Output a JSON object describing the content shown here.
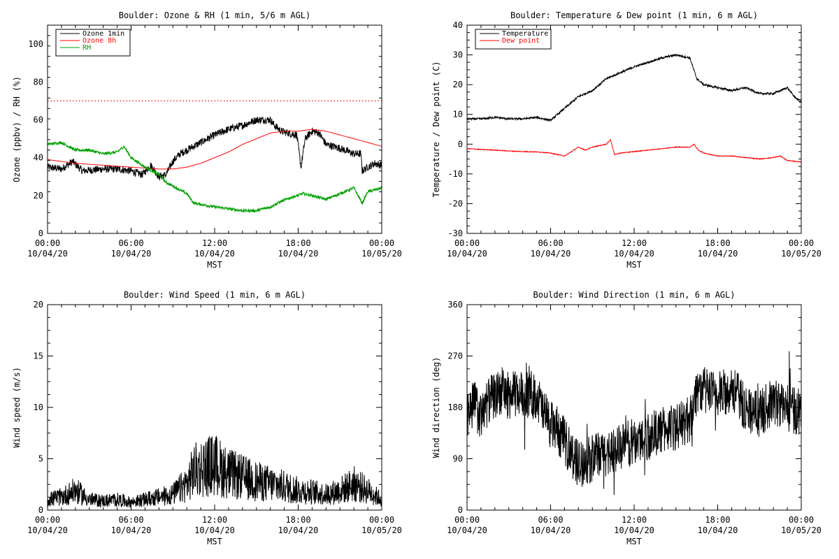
{
  "chart_data": [
    {
      "type": "line",
      "title": "Boulder: Ozone & RH (1 min, 5/6 m AGL)",
      "xlabel": "MST",
      "ylabel": "Ozone (ppbv) / RH (%)",
      "ylim": [
        0,
        110
      ],
      "yticks": [
        0,
        20,
        40,
        60,
        80,
        100
      ],
      "xticks": [
        {
          "hour": 0,
          "time": "00:00",
          "date": "10/04/20"
        },
        {
          "hour": 6,
          "time": "06:00",
          "date": "10/04/20"
        },
        {
          "hour": 12,
          "time": "12:00",
          "date": "10/04/20"
        },
        {
          "hour": 18,
          "time": "18:00",
          "date": "10/04/20"
        },
        {
          "hour": 24,
          "time": "00:00",
          "date": "10/05/20"
        }
      ],
      "legend": "top-left",
      "reference_line": {
        "y": 70,
        "color": "#ff0000",
        "style": "dotted"
      },
      "series": [
        {
          "name": "Ozone 1min",
          "color": "#000000",
          "points": [
            [
              0,
              35
            ],
            [
              1,
              34
            ],
            [
              1.8,
              38
            ],
            [
              2.5,
              33
            ],
            [
              4,
              34
            ],
            [
              5,
              34
            ],
            [
              6,
              33
            ],
            [
              6.8,
              31
            ],
            [
              7.4,
              36
            ],
            [
              8,
              30
            ],
            [
              8.5,
              31
            ],
            [
              9,
              38
            ],
            [
              9.5,
              42
            ],
            [
              10,
              44
            ],
            [
              11,
              48
            ],
            [
              12,
              52
            ],
            [
              13,
              55
            ],
            [
              14,
              57
            ],
            [
              15,
              60
            ],
            [
              16,
              60
            ],
            [
              16.3,
              57
            ],
            [
              16.8,
              54
            ],
            [
              17.3,
              53
            ],
            [
              17.9,
              52
            ],
            [
              18.2,
              35
            ],
            [
              18.5,
              50
            ],
            [
              19,
              54
            ],
            [
              19.5,
              53
            ],
            [
              20,
              47
            ],
            [
              21,
              45
            ],
            [
              22,
              42
            ],
            [
              22.5,
              42
            ],
            [
              22.6,
              33
            ],
            [
              23,
              35
            ],
            [
              23.5,
              37
            ],
            [
              24,
              36
            ]
          ]
        },
        {
          "name": "Ozone 8h",
          "color": "#ff0000",
          "points": [
            [
              0,
              39
            ],
            [
              2,
              37
            ],
            [
              4,
              36
            ],
            [
              6,
              35
            ],
            [
              8,
              34
            ],
            [
              9,
              34
            ],
            [
              10,
              35
            ],
            [
              11,
              37
            ],
            [
              12,
              40
            ],
            [
              13,
              43
            ],
            [
              14,
              47
            ],
            [
              15,
              50
            ],
            [
              16,
              53
            ],
            [
              17,
              54
            ],
            [
              18,
              54
            ],
            [
              19,
              55
            ],
            [
              20,
              54
            ],
            [
              21,
              52
            ],
            [
              22,
              50
            ],
            [
              23,
              48
            ],
            [
              24,
              46
            ]
          ]
        },
        {
          "name": "RH",
          "color": "#00a000",
          "points": [
            [
              0,
              47
            ],
            [
              1,
              48
            ],
            [
              2,
              44
            ],
            [
              3,
              44
            ],
            [
              4,
              42
            ],
            [
              5,
              43
            ],
            [
              5.5,
              46
            ],
            [
              6,
              40
            ],
            [
              7,
              35
            ],
            [
              8,
              31
            ],
            [
              8.5,
              27
            ],
            [
              9,
              25
            ],
            [
              10,
              21
            ],
            [
              10.5,
              16
            ],
            [
              12,
              14
            ],
            [
              13,
              13
            ],
            [
              14,
              12
            ],
            [
              15,
              12
            ],
            [
              16,
              14
            ],
            [
              16.8,
              17
            ],
            [
              17.5,
              19
            ],
            [
              18,
              20
            ],
            [
              18.3,
              21
            ],
            [
              19,
              20
            ],
            [
              20,
              18
            ],
            [
              21,
              21
            ],
            [
              22,
              24
            ],
            [
              22.6,
              16
            ],
            [
              23,
              22
            ],
            [
              24,
              24
            ]
          ]
        }
      ]
    },
    {
      "type": "line",
      "title": "Boulder: Temperature & Dew point (1 min, 6 m AGL)",
      "xlabel": "MST",
      "ylabel": "Temperature / Dew point (C)",
      "ylim": [
        -30,
        40
      ],
      "yticks": [
        -30,
        -20,
        -10,
        0,
        10,
        20,
        30,
        40
      ],
      "xticks": [
        {
          "hour": 0,
          "time": "00:00",
          "date": "10/04/20"
        },
        {
          "hour": 6,
          "time": "06:00",
          "date": "10/04/20"
        },
        {
          "hour": 12,
          "time": "12:00",
          "date": "10/04/20"
        },
        {
          "hour": 18,
          "time": "18:00",
          "date": "10/04/20"
        },
        {
          "hour": 24,
          "time": "00:00",
          "date": "10/05/20"
        }
      ],
      "legend": "top-left",
      "series": [
        {
          "name": "Temperature",
          "color": "#000000",
          "points": [
            [
              0,
              8.5
            ],
            [
              1,
              8.5
            ],
            [
              2,
              9
            ],
            [
              3,
              8.5
            ],
            [
              4,
              8.5
            ],
            [
              5,
              9
            ],
            [
              6,
              8
            ],
            [
              7,
              12
            ],
            [
              8,
              16
            ],
            [
              9,
              18
            ],
            [
              10,
              22
            ],
            [
              11,
              24
            ],
            [
              12,
              26
            ],
            [
              13,
              27.5
            ],
            [
              14,
              29
            ],
            [
              15,
              30
            ],
            [
              16,
              29
            ],
            [
              16.5,
              22
            ],
            [
              17,
              20
            ],
            [
              18,
              19
            ],
            [
              19,
              18
            ],
            [
              20,
              19
            ],
            [
              21,
              17
            ],
            [
              22,
              17
            ],
            [
              23,
              19
            ],
            [
              23.5,
              16
            ],
            [
              24,
              14
            ]
          ]
        },
        {
          "name": "Dew point",
          "color": "#ff0000",
          "points": [
            [
              0,
              -1.5
            ],
            [
              1,
              -1.8
            ],
            [
              2,
              -2
            ],
            [
              3,
              -2.3
            ],
            [
              4,
              -2.5
            ],
            [
              5,
              -2.6
            ],
            [
              6,
              -3
            ],
            [
              7,
              -4
            ],
            [
              8,
              -1
            ],
            [
              8.5,
              -2
            ],
            [
              9,
              -1
            ],
            [
              10,
              0
            ],
            [
              10.3,
              1.5
            ],
            [
              10.6,
              -3.5
            ],
            [
              11,
              -3
            ],
            [
              12,
              -2.5
            ],
            [
              13,
              -2
            ],
            [
              14,
              -1.5
            ],
            [
              15,
              -1
            ],
            [
              16,
              -1
            ],
            [
              16.3,
              0
            ],
            [
              16.6,
              -2
            ],
            [
              17,
              -3
            ],
            [
              18,
              -4
            ],
            [
              19,
              -4
            ],
            [
              20,
              -4.5
            ],
            [
              21,
              -5
            ],
            [
              22,
              -4.5
            ],
            [
              22.5,
              -4
            ],
            [
              23,
              -5.5
            ],
            [
              24,
              -6
            ]
          ]
        }
      ]
    },
    {
      "type": "line",
      "title": "Boulder: Wind Speed (1 min, 6 m AGL)",
      "xlabel": "MST",
      "ylabel": "Wind speed (m/s)",
      "ylim": [
        0,
        20
      ],
      "yticks": [
        0,
        5,
        10,
        15,
        20
      ],
      "xticks": [
        {
          "hour": 0,
          "time": "00:00",
          "date": "10/04/20"
        },
        {
          "hour": 6,
          "time": "06:00",
          "date": "10/04/20"
        },
        {
          "hour": 12,
          "time": "12:00",
          "date": "10/04/20"
        },
        {
          "hour": 18,
          "time": "18:00",
          "date": "10/04/20"
        },
        {
          "hour": 24,
          "time": "00:00",
          "date": "10/05/20"
        }
      ],
      "series": [
        {
          "name": "",
          "color": "#000000",
          "points": [
            [
              0,
              0.8
            ],
            [
              1,
              1
            ],
            [
              2,
              1.5
            ],
            [
              3,
              0.8
            ],
            [
              4,
              0.7
            ],
            [
              5,
              0.8
            ],
            [
              6,
              0.6
            ],
            [
              7,
              0.8
            ],
            [
              8,
              1
            ],
            [
              9,
              1.2
            ],
            [
              10,
              2
            ],
            [
              10.5,
              3
            ],
            [
              11,
              3.2
            ],
            [
              12,
              3.5
            ],
            [
              13,
              2.8
            ],
            [
              14,
              2.5
            ],
            [
              15,
              2.2
            ],
            [
              16,
              2
            ],
            [
              17,
              1.8
            ],
            [
              18,
              1.5
            ],
            [
              19,
              1.4
            ],
            [
              20,
              1.2
            ],
            [
              21,
              1.5
            ],
            [
              22,
              2
            ],
            [
              23,
              1.5
            ],
            [
              24,
              0.8
            ]
          ]
        }
      ]
    },
    {
      "type": "line",
      "title": "Boulder: Wind Direction (1 min, 6 m AGL)",
      "xlabel": "MST",
      "ylabel": "Wind direction (deg)",
      "ylim": [
        0,
        360
      ],
      "yticks": [
        0,
        90,
        180,
        270,
        360
      ],
      "xticks": [
        {
          "hour": 0,
          "time": "00:00",
          "date": "10/04/20"
        },
        {
          "hour": 6,
          "time": "06:00",
          "date": "10/04/20"
        },
        {
          "hour": 12,
          "time": "12:00",
          "date": "10/04/20"
        },
        {
          "hour": 18,
          "time": "18:00",
          "date": "10/04/20"
        },
        {
          "hour": 24,
          "time": "00:00",
          "date": "10/05/20"
        }
      ],
      "series": [
        {
          "name": "",
          "color": "#000000",
          "points": [
            [
              0,
              170
            ],
            [
              0.5,
              190
            ],
            [
              1,
              160
            ],
            [
              1.5,
              190
            ],
            [
              2,
              200
            ],
            [
              2.5,
              210
            ],
            [
              3,
              200
            ],
            [
              4,
              205
            ],
            [
              5,
              200
            ],
            [
              5.5,
              170
            ],
            [
              6,
              150
            ],
            [
              6.5,
              140
            ],
            [
              7,
              120
            ],
            [
              7.5,
              100
            ],
            [
              8,
              80
            ],
            [
              8.5,
              85
            ],
            [
              9,
              90
            ],
            [
              10,
              100
            ],
            [
              11,
              110
            ],
            [
              12,
              120
            ],
            [
              13,
              130
            ],
            [
              14,
              140
            ],
            [
              15,
              145
            ],
            [
              16,
              160
            ],
            [
              16.5,
              210
            ],
            [
              17,
              210
            ],
            [
              18,
              200
            ],
            [
              19,
              215
            ],
            [
              20,
              180
            ],
            [
              21,
              170
            ],
            [
              22,
              190
            ],
            [
              23,
              180
            ],
            [
              24,
              170
            ]
          ]
        }
      ]
    }
  ]
}
